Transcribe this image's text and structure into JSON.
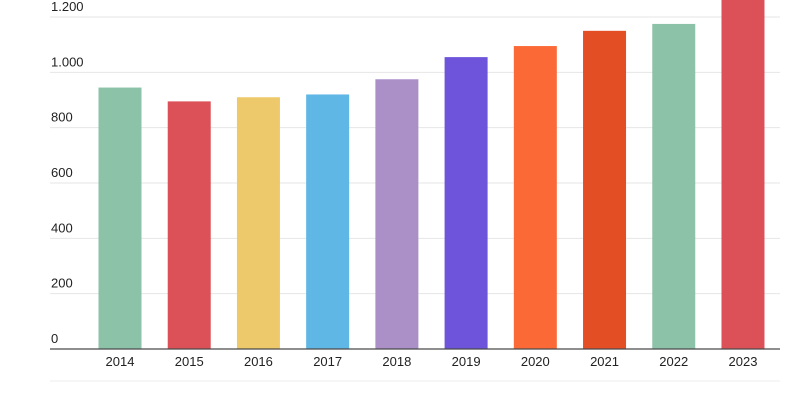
{
  "chart_data": {
    "type": "bar",
    "title": "",
    "xlabel": "",
    "ylabel": "",
    "categories": [
      "2014",
      "2015",
      "2016",
      "2017",
      "2018",
      "2019",
      "2020",
      "2021",
      "2022",
      "2023"
    ],
    "values": [
      945,
      895,
      910,
      920,
      975,
      1055,
      1095,
      1150,
      1175,
      1265
    ],
    "colors": [
      "#8cc3a8",
      "#db5157",
      "#eec96b",
      "#5fb7e6",
      "#ab90c8",
      "#6d54da",
      "#fb6a36",
      "#e44e24",
      "#8cc3a8",
      "#db5157"
    ],
    "ylim": [
      0,
      1260
    ],
    "yticks": [
      0,
      200,
      400,
      600,
      800,
      1000,
      1200
    ],
    "ytick_labels": [
      "0",
      "200",
      "400",
      "600",
      "800",
      "1.000",
      "1.200"
    ],
    "grid": true,
    "legend": "none"
  }
}
